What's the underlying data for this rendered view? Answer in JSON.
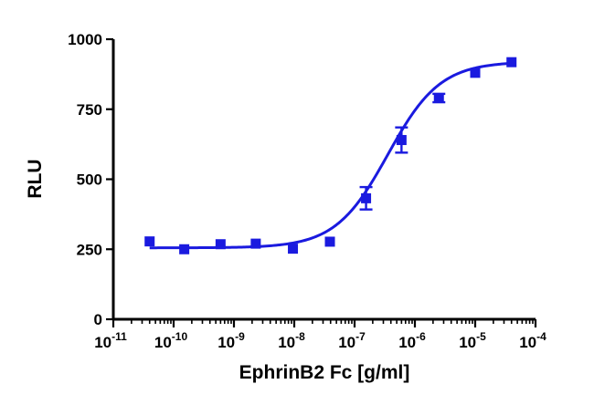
{
  "chart_data": {
    "type": "scatter",
    "x_scale": "log10",
    "xlabel": "EphrinB2 Fc [g/ml]",
    "ylabel": "RLU",
    "xlim": [
      1e-11,
      0.0001
    ],
    "ylim": [
      0,
      1000
    ],
    "y_ticks": [
      0,
      250,
      500,
      750,
      1000
    ],
    "x_tick_labels": [
      {
        "base": "10",
        "exp": "-11"
      },
      {
        "base": "10",
        "exp": "-10"
      },
      {
        "base": "10",
        "exp": "-9"
      },
      {
        "base": "10",
        "exp": "-8"
      },
      {
        "base": "10",
        "exp": "-7"
      },
      {
        "base": "10",
        "exp": "-6"
      },
      {
        "base": "10",
        "exp": "-5"
      },
      {
        "base": "10",
        "exp": "-4"
      }
    ],
    "grid": false,
    "color": "#1a1adf",
    "series": [
      {
        "marker": "square",
        "points": [
          {
            "x": 4e-11,
            "y": 278,
            "err": 0
          },
          {
            "x": 1.5e-10,
            "y": 250,
            "err": 0
          },
          {
            "x": 6e-10,
            "y": 268,
            "err": 0
          },
          {
            "x": 2.3e-09,
            "y": 270,
            "err": 0
          },
          {
            "x": 9.5e-09,
            "y": 252,
            "err": 0
          },
          {
            "x": 3.9e-08,
            "y": 277,
            "err": 0
          },
          {
            "x": 1.55e-07,
            "y": 432,
            "err": 40
          },
          {
            "x": 6e-07,
            "y": 640,
            "err": 45
          },
          {
            "x": 2.5e-06,
            "y": 790,
            "err": 15
          },
          {
            "x": 1e-05,
            "y": 880,
            "err": 0
          },
          {
            "x": 4e-05,
            "y": 918,
            "err": 0
          }
        ]
      }
    ],
    "fit_curve": {
      "model": "four-parameter logistic",
      "bottom": 255,
      "top": 920,
      "log_ec50": -6.45,
      "hill_slope": 1.0,
      "x_range": [
        4e-11,
        4e-05
      ]
    }
  }
}
